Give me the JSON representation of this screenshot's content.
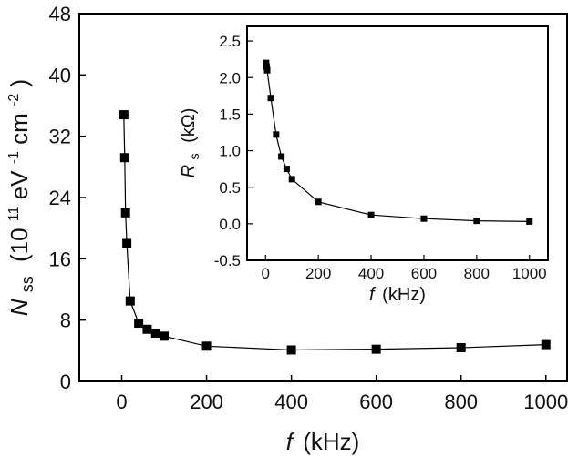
{
  "chart_data": [
    {
      "id": "main",
      "type": "line",
      "marker": "square",
      "title": "",
      "xlabel": {
        "symbol": "f",
        "unit": "(kHz)"
      },
      "ylabel": {
        "symbol": "N",
        "sub": "ss",
        "unit_open": "(10",
        "exp1": "11",
        "mid": " eV",
        "exp2": "-1",
        "mid2": "cm",
        "exp3": "-2",
        "close": ")"
      },
      "xlim": [
        -100,
        1050
      ],
      "ylim": [
        0,
        48
      ],
      "xticks": [
        0,
        200,
        400,
        600,
        800,
        1000
      ],
      "yticks": [
        0,
        8,
        16,
        24,
        32,
        40,
        48
      ],
      "xtick_labels": [
        "0",
        "200",
        "400",
        "600",
        "800",
        "1000"
      ],
      "ytick_labels": [
        "0",
        "8",
        "16",
        "24",
        "32",
        "40",
        "48"
      ],
      "series": [
        {
          "name": "Nss",
          "x": [
            5,
            7,
            9,
            12,
            20,
            40,
            60,
            80,
            100,
            200,
            400,
            600,
            800,
            1000
          ],
          "y": [
            34.8,
            29.2,
            22.0,
            18.0,
            10.5,
            7.6,
            6.8,
            6.3,
            5.9,
            4.6,
            4.1,
            4.2,
            4.4,
            4.8
          ]
        }
      ]
    },
    {
      "id": "inset",
      "type": "line",
      "marker": "square",
      "title": "",
      "xlabel": {
        "symbol": "f",
        "unit": "(kHz)"
      },
      "ylabel": {
        "symbol": "R",
        "sub": "s",
        "unit": "(kΩ)"
      },
      "xlim": [
        -70,
        1070
      ],
      "ylim": [
        -0.5,
        2.7
      ],
      "xticks": [
        0,
        200,
        400,
        600,
        800,
        1000
      ],
      "yticks": [
        -0.5,
        0.0,
        0.5,
        1.0,
        1.5,
        2.0,
        2.5
      ],
      "xtick_labels": [
        "0",
        "200",
        "400",
        "600",
        "800",
        "1000"
      ],
      "ytick_labels": [
        "-0.5",
        "0.0",
        "0.5",
        "1.0",
        "1.5",
        "2.0",
        "2.5"
      ],
      "series": [
        {
          "name": "Rs",
          "x": [
            2,
            4,
            6,
            20,
            40,
            60,
            80,
            100,
            200,
            400,
            600,
            800,
            1000
          ],
          "y": [
            2.2,
            2.15,
            2.1,
            1.72,
            1.22,
            0.92,
            0.75,
            0.61,
            0.3,
            0.12,
            0.07,
            0.04,
            0.03
          ]
        }
      ]
    }
  ]
}
